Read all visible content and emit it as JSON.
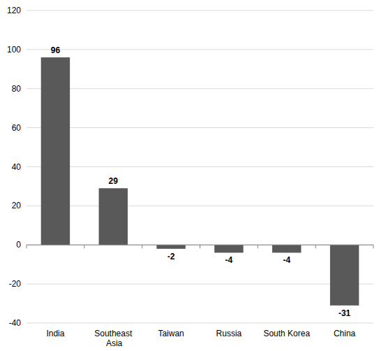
{
  "chart_data": {
    "type": "bar",
    "categories": [
      "India",
      "Southeast Asia",
      "Taiwan",
      "Russia",
      "South Korea",
      "China"
    ],
    "values": [
      96,
      29,
      -2,
      -4,
      -4,
      -31
    ],
    "color": "#595959",
    "ylim": [
      -40,
      120
    ],
    "yticks": [
      -40,
      -20,
      0,
      20,
      40,
      60,
      80,
      100,
      120
    ],
    "grid": true,
    "data_labels": true
  }
}
